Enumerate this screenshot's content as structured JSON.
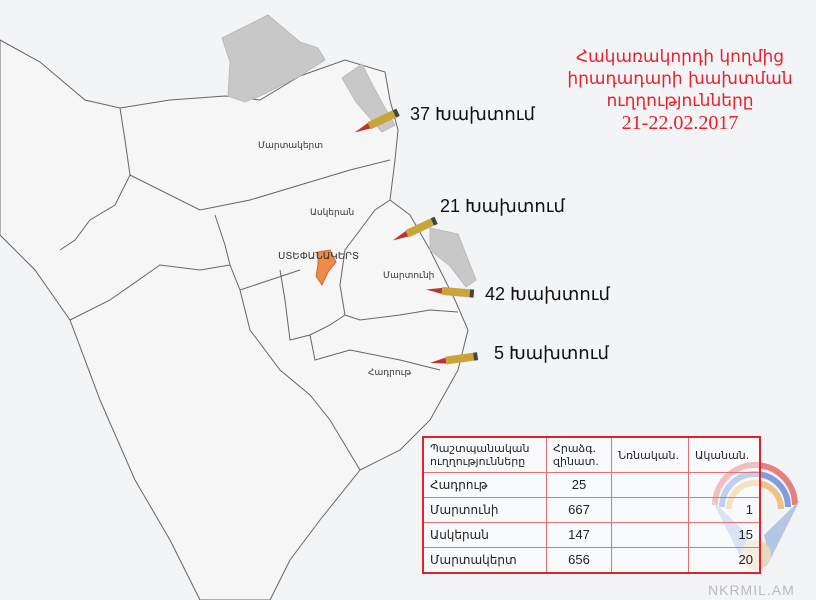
{
  "title": {
    "line1": "Հակառակորդի կողմից",
    "line2": "իրադադարի խախտման",
    "line3": "ուղղությունները",
    "date": "21-22.02.2017"
  },
  "regions": {
    "martakert": "Մարտակերտ",
    "askeran": "Ասկերան",
    "stepanakert": "ՍՏԵՓԱՆԱԿԵՐՏ",
    "martuni": "Մարտունի",
    "hadrut": "Հադրութ"
  },
  "violations": [
    {
      "label": "37 Խախտում"
    },
    {
      "label": "21 Խախտում"
    },
    {
      "label": "42 Խախտում"
    },
    {
      "label": "5 Խախտում"
    }
  ],
  "table": {
    "headers": [
      "Պաշտպանական ուղղությունները",
      "Հրաձգ. զինատ.",
      "Նռնական.",
      "Ականան."
    ],
    "rows": [
      {
        "direction": "Հադրութ",
        "small_arms": "25",
        "grenade": "",
        "mortar": ""
      },
      {
        "direction": "Մարտունի",
        "small_arms": "667",
        "grenade": "",
        "mortar": "1"
      },
      {
        "direction": "Ասկերան",
        "small_arms": "147",
        "grenade": "",
        "mortar": "15"
      },
      {
        "direction": "Մարտակերտ",
        "small_arms": "656",
        "grenade": "",
        "mortar": "20"
      }
    ]
  },
  "colors": {
    "title": "#e8202a",
    "occupied": "#c8c8c8",
    "capital": "#f08a4b",
    "border": "#555555"
  },
  "watermark": "NKRMIL.AM"
}
